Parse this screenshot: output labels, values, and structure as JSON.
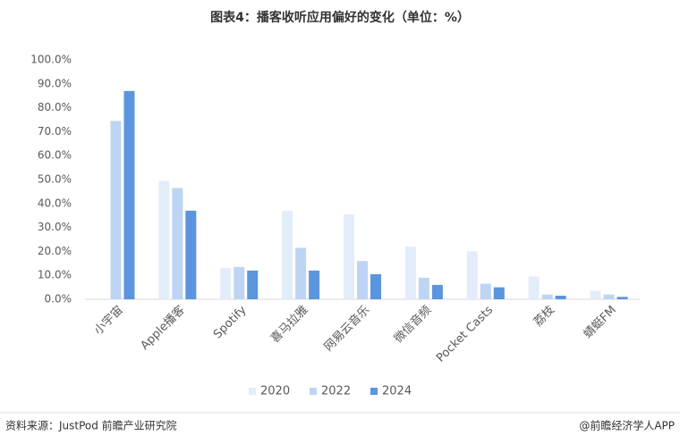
{
  "chart_data": {
    "type": "bar",
    "title": "图表4：播客收听应用偏好的变化（单位：%）",
    "categories": [
      "小宇宙",
      "Apple播客",
      "Spotify",
      "喜马拉雅",
      "网易云音乐",
      "微信音频",
      "Pocket Casts",
      "荔枝",
      "蜻蜓FM"
    ],
    "series": [
      {
        "name": "2020",
        "color": "#e3edfa",
        "values": [
          null,
          49.5,
          13,
          37,
          35.5,
          22,
          20,
          9.5,
          3.5
        ]
      },
      {
        "name": "2022",
        "color": "#bdd5f3",
        "values": [
          74.5,
          46.5,
          13.5,
          21.5,
          16,
          9,
          6.5,
          2,
          2
        ]
      },
      {
        "name": "2024",
        "color": "#5b95dd",
        "values": [
          87,
          37,
          12,
          12,
          10.5,
          6,
          5,
          1.5,
          1
        ]
      }
    ],
    "ylim": [
      0,
      100
    ],
    "yticks": [
      {
        "value": 0,
        "label": "0.0%"
      },
      {
        "value": 10,
        "label": "10.0%"
      },
      {
        "value": 20,
        "label": "20.0%"
      },
      {
        "value": 30,
        "label": "30.0%"
      },
      {
        "value": 40,
        "label": "40.0%"
      },
      {
        "value": 50,
        "label": "50.0%"
      },
      {
        "value": 60,
        "label": "60.0%"
      },
      {
        "value": 70,
        "label": "70.0%"
      },
      {
        "value": 80,
        "label": "80.0%"
      },
      {
        "value": 90,
        "label": "90.0%"
      },
      {
        "value": 100,
        "label": "100.0%"
      }
    ],
    "legend": "bottom",
    "source": "资料来源：JustPod  前瞻产业研究院",
    "credit": "@前瞻经济学人APP"
  }
}
